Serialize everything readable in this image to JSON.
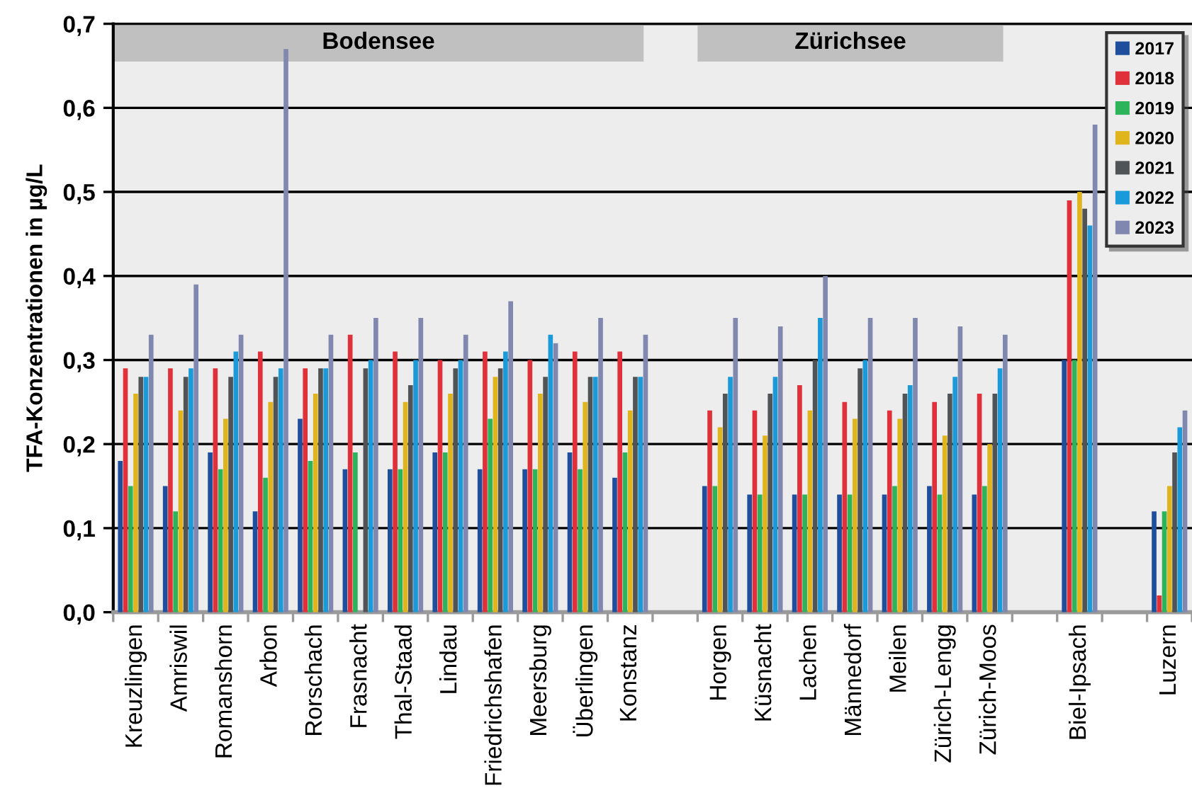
{
  "chart_data": {
    "type": "bar",
    "ylabel": "TFA-Konzentrationen in µg/L",
    "categories": [
      "Kreuzlingen",
      "Amriswil",
      "Romanshorn",
      "Arbon",
      "Rorschach",
      "Frasnacht",
      "Thal-Staad",
      "Lindau",
      "Friedrichshafen",
      "Meersburg",
      "Überlingen",
      "Konstanz",
      null,
      "Horgen",
      "Küsnacht",
      "Lachen",
      "Männedorf",
      "Meilen",
      "Zürich-Lengg",
      "Zürich-Moos",
      null,
      "Biel-Ipsach",
      null,
      "Luzern"
    ],
    "series": [
      {
        "name": "2017",
        "color": "#1f4e9c",
        "values": [
          0.18,
          0.15,
          0.19,
          0.12,
          0.23,
          0.17,
          0.17,
          0.19,
          0.17,
          0.17,
          0.19,
          0.16,
          null,
          0.15,
          0.14,
          0.14,
          0.14,
          0.14,
          0.15,
          0.14,
          null,
          0.3,
          null,
          0.12
        ]
      },
      {
        "name": "2018",
        "color": "#e0313a",
        "values": [
          0.29,
          0.29,
          0.29,
          0.31,
          0.29,
          0.33,
          0.31,
          0.3,
          0.31,
          0.3,
          0.31,
          0.31,
          null,
          0.24,
          0.24,
          0.27,
          0.25,
          0.24,
          0.25,
          0.26,
          null,
          0.49,
          null,
          0.02
        ]
      },
      {
        "name": "2019",
        "color": "#2db35a",
        "values": [
          0.15,
          0.12,
          0.17,
          0.16,
          0.18,
          0.19,
          0.17,
          0.19,
          0.23,
          0.17,
          0.17,
          0.19,
          null,
          0.15,
          0.14,
          0.14,
          0.14,
          0.15,
          0.14,
          0.15,
          null,
          0.3,
          null,
          0.12
        ]
      },
      {
        "name": "2020",
        "color": "#e0b41c",
        "values": [
          0.26,
          0.24,
          0.23,
          0.25,
          0.26,
          null,
          0.25,
          0.26,
          0.28,
          0.26,
          0.25,
          0.24,
          null,
          0.22,
          0.21,
          0.24,
          0.23,
          0.23,
          0.21,
          0.2,
          null,
          0.5,
          null,
          0.15
        ]
      },
      {
        "name": "2021",
        "color": "#505457",
        "values": [
          0.28,
          0.28,
          0.28,
          0.28,
          0.29,
          0.29,
          0.27,
          0.29,
          0.29,
          0.28,
          0.28,
          0.28,
          null,
          0.26,
          0.26,
          0.3,
          0.29,
          0.26,
          0.26,
          0.26,
          null,
          0.48,
          null,
          0.19
        ]
      },
      {
        "name": "2022",
        "color": "#1a9ad8",
        "values": [
          0.28,
          0.29,
          0.31,
          0.29,
          0.29,
          0.3,
          0.3,
          0.3,
          0.31,
          0.33,
          0.28,
          0.28,
          null,
          0.28,
          0.28,
          0.35,
          0.3,
          0.27,
          0.28,
          0.29,
          null,
          0.46,
          null,
          0.22
        ]
      },
      {
        "name": "2023",
        "color": "#8088b0",
        "values": [
          0.33,
          0.39,
          0.33,
          0.67,
          0.33,
          0.35,
          0.35,
          0.33,
          0.37,
          0.32,
          0.35,
          0.33,
          null,
          0.35,
          0.34,
          0.4,
          0.35,
          0.35,
          0.34,
          0.33,
          null,
          0.58,
          null,
          0.24
        ]
      }
    ],
    "ylim": [
      0,
      0.7
    ],
    "yticks": [
      {
        "value": 0,
        "label": "0,0"
      },
      {
        "value": 0.1,
        "label": "0,1"
      },
      {
        "value": 0.2,
        "label": "0,2"
      },
      {
        "value": 0.3,
        "label": "0,3"
      },
      {
        "value": 0.4,
        "label": "0,4"
      },
      {
        "value": 0.5,
        "label": "0,5"
      },
      {
        "value": 0.6,
        "label": "0,6"
      },
      {
        "value": 0.7,
        "label": "0,7"
      }
    ],
    "grid": "y",
    "legend": "top right",
    "bands": [
      {
        "axis": "x",
        "from": "Kreuzlingen",
        "to": "Konstanz",
        "label": "Bodensee",
        "color": "#c0c0c0"
      },
      {
        "axis": "x",
        "from": "Horgen",
        "to": "Zürich-Moos",
        "label": "Zürichsee",
        "color": "#c0c0c0"
      }
    ]
  }
}
